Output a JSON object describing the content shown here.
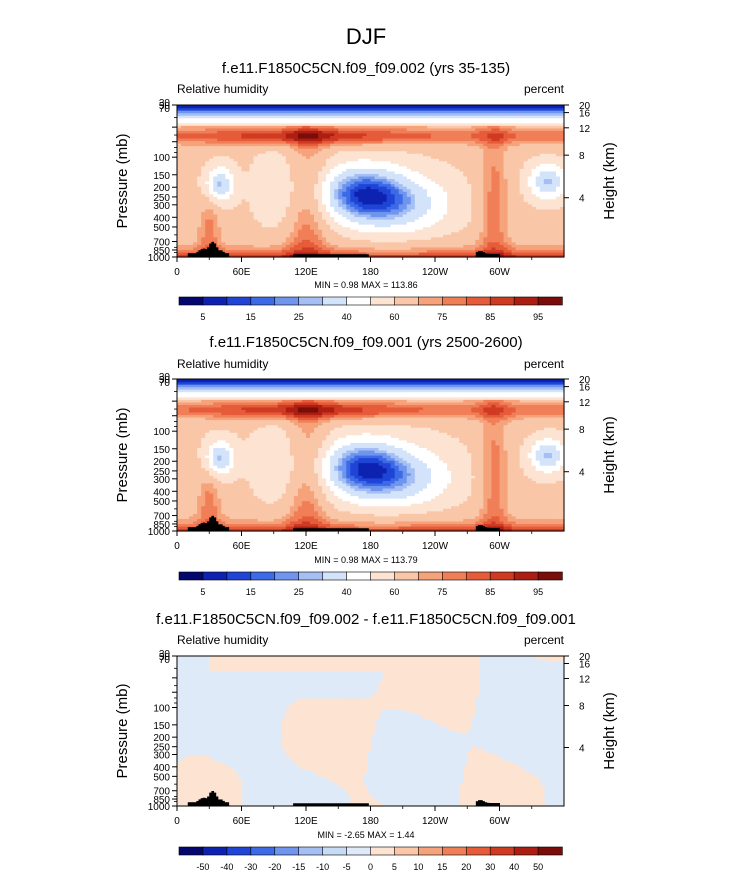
{
  "figure": {
    "main_title": "DJF"
  },
  "colors": {
    "base_levels": [
      "#03076e",
      "#0d22b0",
      "#1f44d6",
      "#3d6ae6",
      "#6f95ee",
      "#a5bff4",
      "#d3e3fa",
      "#ffffff",
      "#fde3d2",
      "#fac6a8",
      "#f6a27b",
      "#f07f58",
      "#e65c3a",
      "#cf3a22",
      "#ac1e12",
      "#7a0c0a"
    ],
    "diff_levels": [
      "#03076e",
      "#0d22b0",
      "#1f44d6",
      "#3d6ae6",
      "#6f95ee",
      "#a5bff4",
      "#c6dcf5",
      "#dfeaf9",
      "#fde3d2",
      "#fac6a8",
      "#f6a27b",
      "#f07f58",
      "#e65c3a",
      "#cf3a22",
      "#ac1e12",
      "#7a0c0a"
    ],
    "terrain": "#000000",
    "diff_bg": "#dfeaf9",
    "diff_pos": "#fde3d2"
  },
  "chart_data": [
    {
      "type": "heatmap",
      "name": "panel-1",
      "title": "f.e11.F1850C5CN.f09_f09.002 (yrs 35-135)",
      "left_string": "Relative humidity",
      "right_string": "percent",
      "ylabel": "Pressure (mb)",
      "ylabel_right": "Height (km)",
      "xticks": [
        "0",
        "60E",
        "120E",
        "180",
        "120W",
        "60W"
      ],
      "yticks": [
        "1000",
        "850",
        "700",
        "500",
        "400",
        "300",
        "250",
        "200",
        "150",
        "100",
        "70",
        "50",
        "30"
      ],
      "yticks_right": [
        "4",
        "8",
        "12",
        "16",
        "20"
      ],
      "stats": "MIN =   0.98  MAX = 113.86",
      "colorbar_labels": [
        "5",
        "15",
        "25",
        "40",
        "60",
        "75",
        "85",
        "95"
      ]
    },
    {
      "type": "heatmap",
      "name": "panel-2",
      "title": "f.e11.F1850C5CN.f09_f09.001 (yrs 2500-2600)",
      "left_string": "Relative humidity",
      "right_string": "percent",
      "ylabel": "Pressure (mb)",
      "ylabel_right": "Height (km)",
      "xticks": [
        "0",
        "60E",
        "120E",
        "180",
        "120W",
        "60W"
      ],
      "yticks": [
        "1000",
        "850",
        "700",
        "500",
        "400",
        "300",
        "250",
        "200",
        "150",
        "100",
        "70",
        "50",
        "30"
      ],
      "yticks_right": [
        "4",
        "8",
        "12",
        "16",
        "20"
      ],
      "stats": "MIN =   0.98  MAX = 113.79",
      "colorbar_labels": [
        "5",
        "15",
        "25",
        "40",
        "60",
        "75",
        "85",
        "95"
      ]
    },
    {
      "type": "heatmap",
      "name": "panel-3",
      "title": "f.e11.F1850C5CN.f09_f09.002 - f.e11.F1850C5CN.f09_f09.001",
      "left_string": "Relative humidity",
      "right_string": "percent",
      "ylabel": "Pressure (mb)",
      "ylabel_right": "Height (km)",
      "xticks": [
        "0",
        "60E",
        "120E",
        "180",
        "120W",
        "60W"
      ],
      "yticks": [
        "1000",
        "850",
        "700",
        "500",
        "400",
        "300",
        "250",
        "200",
        "150",
        "100",
        "70",
        "50",
        "30"
      ],
      "yticks_right": [
        "4",
        "8",
        "12",
        "16",
        "20"
      ],
      "stats": "MIN =  -2.65  MAX =   1.44",
      "colorbar_labels": [
        "-50",
        "-40",
        "-30",
        "-20",
        "-15",
        "-10",
        "-5",
        "0",
        "5",
        "10",
        "15",
        "20",
        "30",
        "40",
        "50"
      ]
    }
  ]
}
